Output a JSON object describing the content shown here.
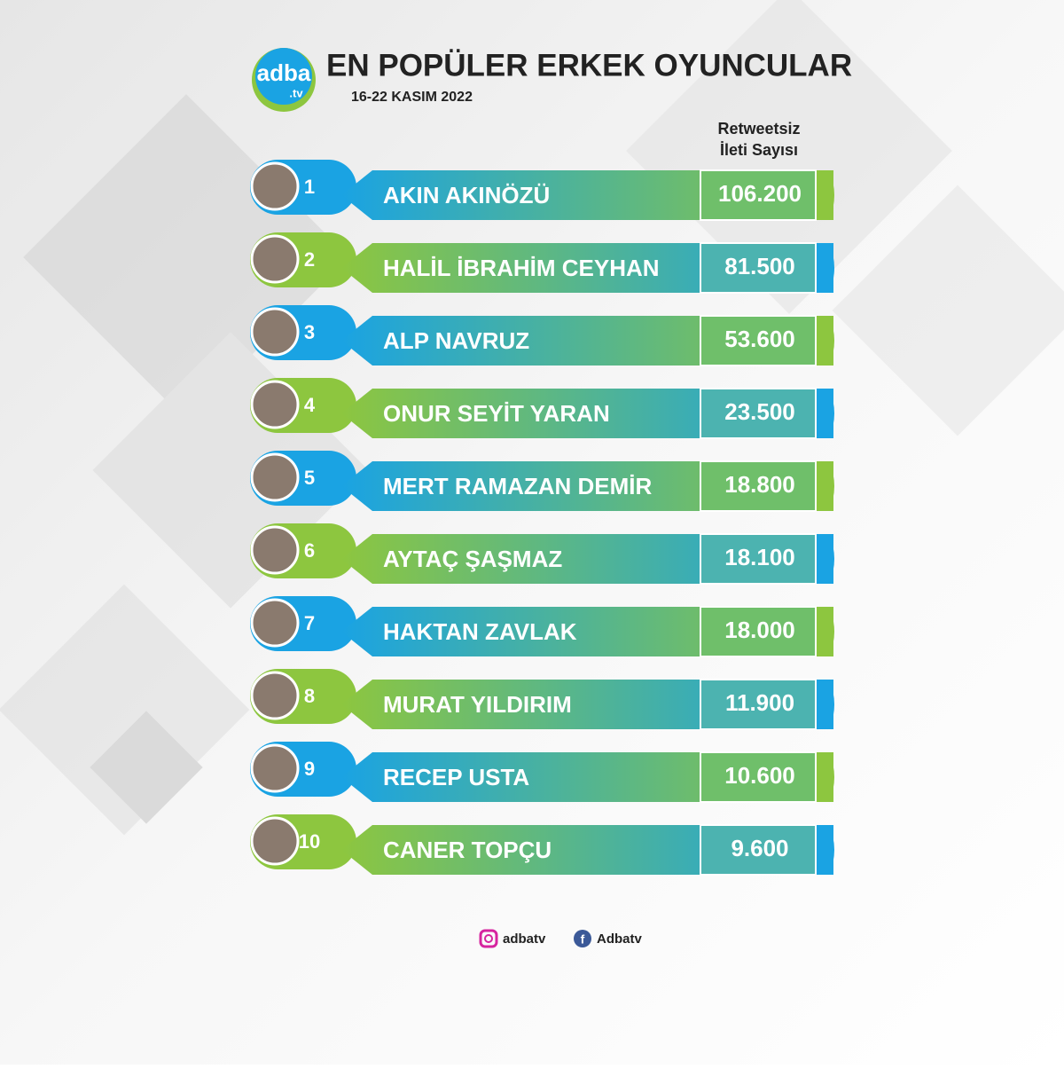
{
  "header": {
    "logo": "adba",
    "logo_sub": ".tv",
    "title": "EN POPÜLER ERKEK OYUNCULAR",
    "date": "16-22 KASIM 2022"
  },
  "column_header": [
    "Retweetsiz",
    "İleti Sayısı"
  ],
  "rows": [
    {
      "rank": "1",
      "name": "AKIN AKINÖZÜ",
      "count": "106.200"
    },
    {
      "rank": "2",
      "name": "HALİL İBRAHİM CEYHAN",
      "count": "81.500"
    },
    {
      "rank": "3",
      "name": "ALP NAVRUZ",
      "count": "53.600"
    },
    {
      "rank": "4",
      "name": "ONUR SEYİT YARAN",
      "count": "23.500"
    },
    {
      "rank": "5",
      "name": "MERT RAMAZAN DEMİR",
      "count": "18.800"
    },
    {
      "rank": "6",
      "name": "AYTAÇ ŞAŞMAZ",
      "count": "18.100"
    },
    {
      "rank": "7",
      "name": "HAKTAN ZAVLAK",
      "count": "18.000"
    },
    {
      "rank": "8",
      "name": "MURAT YILDIRIM",
      "count": "11.900"
    },
    {
      "rank": "9",
      "name": "RECEP USTA",
      "count": "10.600"
    },
    {
      "rank": "10",
      "name": "CANER TOPÇU",
      "count": "9.600"
    }
  ],
  "footer": {
    "instagram": "adbatv",
    "facebook": "Adbatv"
  }
}
